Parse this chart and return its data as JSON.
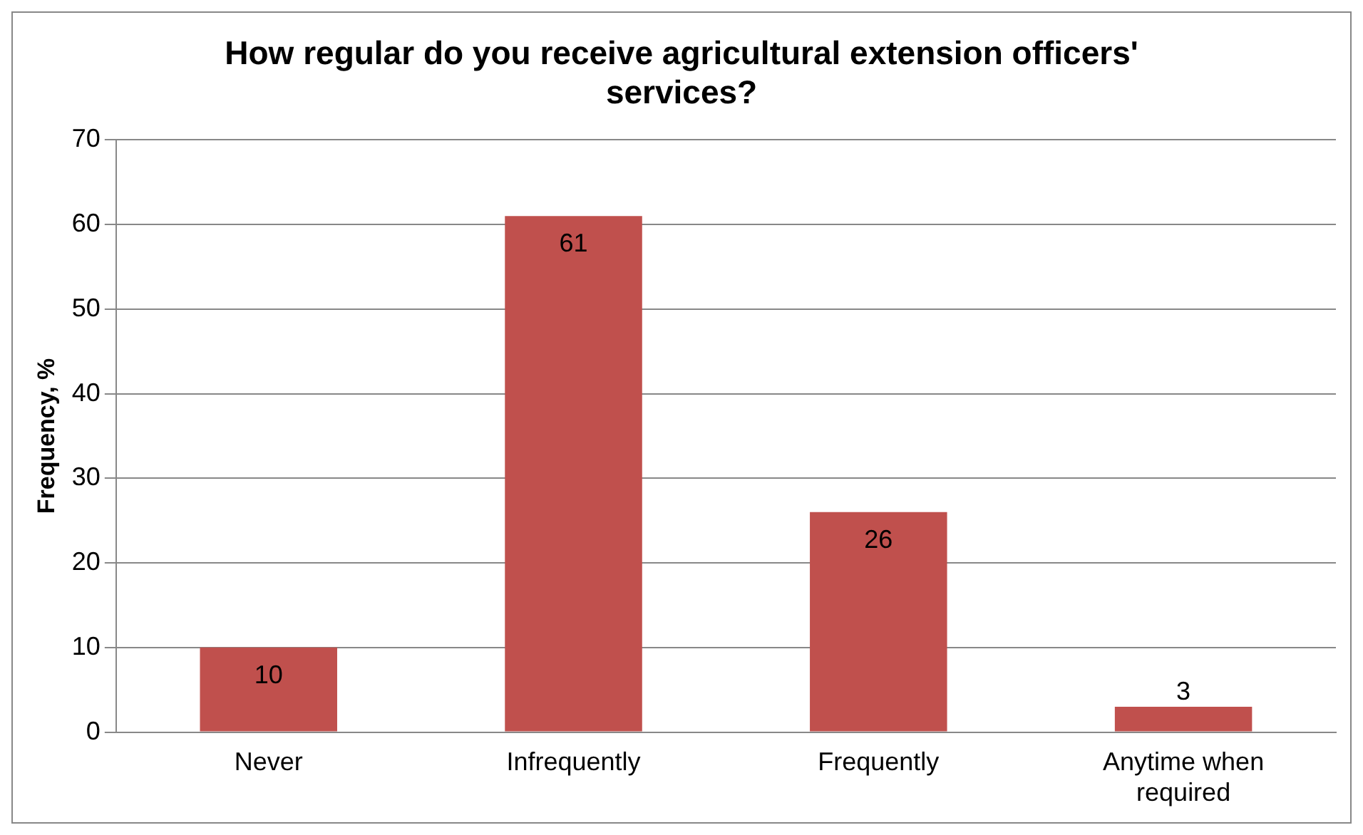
{
  "chart_data": {
    "type": "bar",
    "title": "How regular do you receive agricultural extension officers' services?",
    "ylabel": "Frequency, %",
    "categories": [
      "Never",
      "Infrequently",
      "Frequently",
      "Anytime when required"
    ],
    "values": [
      10,
      61,
      26,
      3
    ],
    "color": "#c0504d",
    "ylim": [
      0,
      70
    ],
    "yticks": [
      0,
      10,
      20,
      30,
      40,
      50,
      60,
      70
    ],
    "grid": "y",
    "legend": false,
    "data_labels": true
  }
}
